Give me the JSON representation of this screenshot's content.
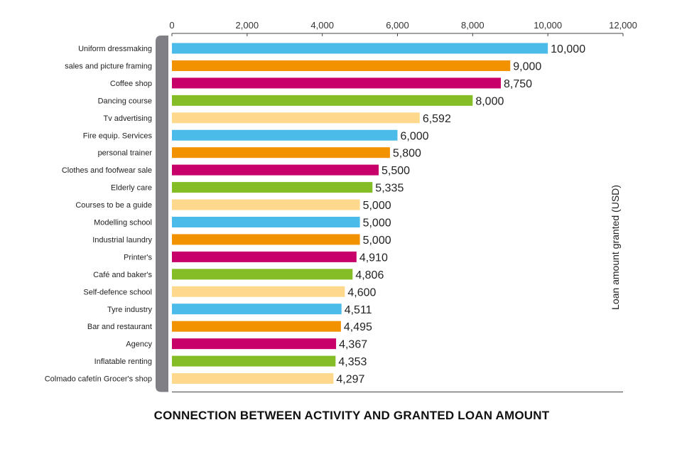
{
  "chart_data": {
    "type": "bar",
    "orientation": "horizontal",
    "title": "CONNECTION BETWEEN ACTIVITY AND GRANTED LOAN AMOUNT",
    "ylabel": "Loan amount granted (USD)",
    "xlim": [
      0,
      12000
    ],
    "x_ticks": [
      0,
      2000,
      4000,
      6000,
      8000,
      10000,
      12000
    ],
    "x_tick_labels": [
      "0",
      "2,000",
      "4,000",
      "6,000",
      "8,000",
      "10,000",
      "12,000"
    ],
    "grid": false,
    "categories": [
      "Uniform dressmaking",
      "sales and picture framing",
      "Coffee shop",
      "Dancing course",
      "Tv advertising",
      "Fire equip. Services",
      "personal trainer",
      "Clothes and foofwear sale",
      "Elderly care",
      "Courses to be a guide",
      "Modelling school",
      "Industrial laundry",
      "Printer's",
      "Café and baker's",
      "Self-defence school",
      "Tyre industry",
      "Bar and restaurant",
      "Agency",
      "Inflatable renting",
      "Colmado cafetín Grocer's shop"
    ],
    "values": [
      10000,
      9000,
      8750,
      8000,
      6592,
      6000,
      5800,
      5500,
      5335,
      5000,
      5000,
      5000,
      4910,
      4806,
      4600,
      4511,
      4495,
      4367,
      4353,
      4297
    ],
    "value_labels": [
      "10,000",
      "9,000",
      "8,750",
      "8,000",
      "6,592",
      "6,000",
      "5,800",
      "5,500",
      "5,335",
      "5,000",
      "5,000",
      "5,000",
      "4,910",
      "4,806",
      "4,600",
      "4,511",
      "4,495",
      "4,367",
      "4,353",
      "4,297"
    ],
    "bar_colors": [
      "#4bbbea",
      "#f39200",
      "#c8006a",
      "#84bd26",
      "#fed98d"
    ],
    "colors": {
      "axis": "#444444",
      "category_band": "#7f7f85"
    }
  }
}
